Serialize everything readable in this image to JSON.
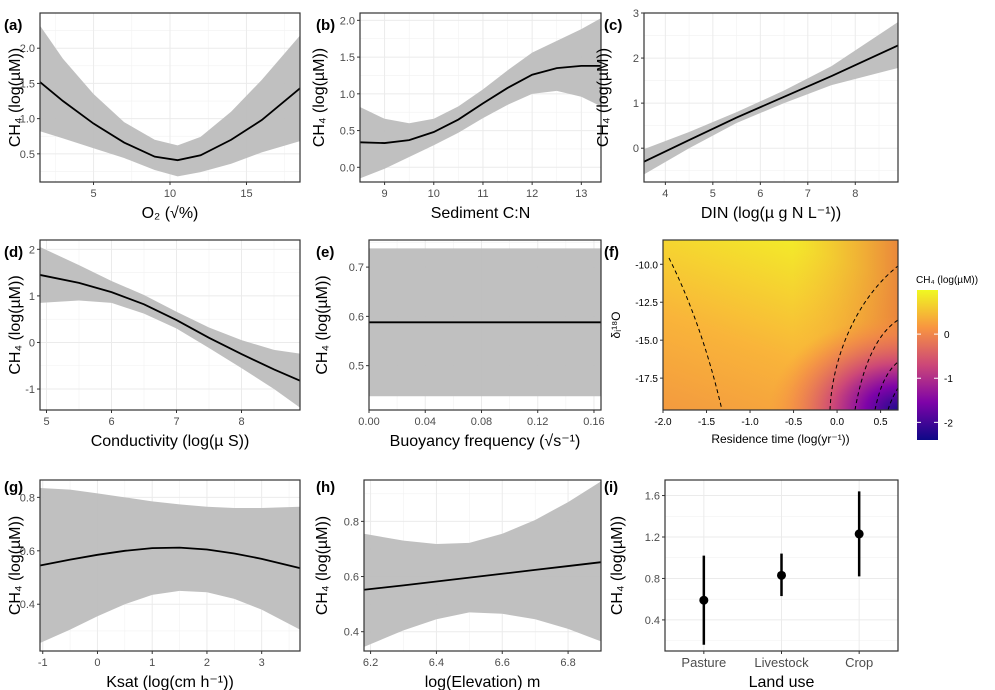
{
  "chart_data": [
    {
      "panel": "(a)",
      "type": "line",
      "xlabel": "O₂ (√%)",
      "ylabel": "CH₄ (log(µM))",
      "xlim": [
        1.5,
        18.5
      ],
      "ylim": [
        0.1,
        2.5
      ],
      "xticks": [
        5,
        10,
        15
      ],
      "yticks": [
        0.5,
        1.0,
        1.5,
        2.0
      ],
      "ytick_labels": [
        "0.5",
        "1.0",
        "1.5",
        "2.0"
      ],
      "x": [
        1.5,
        3,
        5,
        7,
        9,
        10.5,
        12,
        14,
        16,
        18.5
      ],
      "fit": [
        1.52,
        1.25,
        0.93,
        0.66,
        0.46,
        0.41,
        0.48,
        0.7,
        0.98,
        1.43
      ],
      "lower": [
        0.82,
        0.72,
        0.58,
        0.44,
        0.27,
        0.18,
        0.24,
        0.36,
        0.52,
        0.68
      ],
      "upper": [
        2.32,
        1.85,
        1.35,
        0.95,
        0.7,
        0.62,
        0.74,
        1.1,
        1.55,
        2.18
      ]
    },
    {
      "panel": "(b)",
      "type": "line",
      "xlabel": "Sediment C:N",
      "ylabel": "CH₄ (log(µM))",
      "xlim": [
        8.5,
        13.4
      ],
      "ylim": [
        -0.2,
        2.1
      ],
      "xticks": [
        9,
        10,
        11,
        12,
        13
      ],
      "yticks": [
        0.0,
        0.5,
        1.0,
        1.5,
        2.0
      ],
      "ytick_labels": [
        "0.0",
        "0.5",
        "1.0",
        "1.5",
        "2.0"
      ],
      "x": [
        8.5,
        9,
        9.5,
        10,
        10.5,
        11,
        11.5,
        12,
        12.5,
        13,
        13.4
      ],
      "fit": [
        0.34,
        0.33,
        0.37,
        0.48,
        0.65,
        0.87,
        1.08,
        1.26,
        1.35,
        1.38,
        1.38
      ],
      "lower": [
        -0.15,
        -0.02,
        0.14,
        0.3,
        0.47,
        0.67,
        0.85,
        1.0,
        1.04,
        0.96,
        0.83
      ],
      "upper": [
        0.82,
        0.66,
        0.6,
        0.66,
        0.83,
        1.06,
        1.32,
        1.56,
        1.72,
        1.88,
        2.03
      ]
    },
    {
      "panel": "(c)",
      "type": "line",
      "xlabel": "DIN (log(µ g N L⁻¹))",
      "ylabel": "CH₄ (log(µM))",
      "xlim": [
        3.55,
        8.9
      ],
      "ylim": [
        -0.75,
        3.0
      ],
      "xticks": [
        4,
        5,
        6,
        7,
        8
      ],
      "yticks": [
        0,
        1,
        2,
        3
      ],
      "ytick_labels": [
        "0",
        "1",
        "2",
        "3"
      ],
      "x": [
        3.55,
        4.5,
        5.5,
        6.5,
        7.5,
        8.9
      ],
      "fit": [
        -0.3,
        0.18,
        0.68,
        1.14,
        1.6,
        2.28
      ],
      "lower": [
        -0.58,
        0.0,
        0.56,
        1.0,
        1.4,
        1.78
      ],
      "upper": [
        -0.02,
        0.36,
        0.8,
        1.28,
        1.82,
        2.8
      ]
    },
    {
      "panel": "(d)",
      "type": "line",
      "xlabel": "Conductivity (log(µ S))",
      "ylabel": "CH₄ (log(µM))",
      "xlim": [
        4.9,
        8.9
      ],
      "ylim": [
        -1.45,
        2.2
      ],
      "xticks": [
        5,
        6,
        7,
        8
      ],
      "yticks": [
        -1,
        0,
        1,
        2
      ],
      "ytick_labels": [
        "-1",
        "0",
        "1",
        "2"
      ],
      "x": [
        4.9,
        5.5,
        6,
        6.5,
        7,
        7.5,
        8,
        8.5,
        8.9
      ],
      "fit": [
        1.45,
        1.28,
        1.08,
        0.82,
        0.48,
        0.1,
        -0.25,
        -0.58,
        -0.82
      ],
      "lower": [
        0.85,
        0.9,
        0.85,
        0.62,
        0.3,
        -0.12,
        -0.55,
        -1.0,
        -1.4
      ],
      "upper": [
        2.05,
        1.66,
        1.32,
        1.02,
        0.66,
        0.32,
        0.05,
        -0.16,
        -0.24
      ]
    },
    {
      "panel": "(e)",
      "type": "line",
      "xlabel": "Buoyancy frequency (√s⁻¹)",
      "ylabel": "CH₄ (log(µM))",
      "xlim": [
        0.0,
        0.165
      ],
      "ylim": [
        0.41,
        0.755
      ],
      "xticks": [
        0.0,
        0.04,
        0.08,
        0.12,
        0.16
      ],
      "xtick_labels": [
        "0.00",
        "0.04",
        "0.08",
        "0.12",
        "0.16"
      ],
      "yticks": [
        0.5,
        0.6,
        0.7
      ],
      "ytick_labels": [
        "0.5",
        "0.6",
        "0.7"
      ],
      "x": [
        0.0,
        0.165
      ],
      "fit": [
        0.588,
        0.588
      ],
      "lower": [
        0.438,
        0.438
      ],
      "upper": [
        0.738,
        0.738
      ]
    },
    {
      "panel": "(f)",
      "type": "heatmap",
      "xlabel": "Residence time (log(yr⁻¹))",
      "ylabel": "δᵢ¹⁸O",
      "xlim": [
        -2.0,
        0.7
      ],
      "ylim": [
        -19.6,
        -8.4
      ],
      "xticks": [
        -2.0,
        -1.5,
        -1.0,
        -0.5,
        0.0,
        0.5
      ],
      "xtick_labels": [
        "-2.0",
        "-1.5",
        "-1.0",
        "-0.5",
        "0.0",
        "0.5"
      ],
      "yticks": [
        -17.5,
        -15.0,
        -12.5,
        -10.0
      ],
      "ytick_labels": [
        "-17.5",
        "-15.0",
        "-12.5",
        "-10.0"
      ],
      "legend_title": "CH₄ (log(µM))",
      "legend_ticks": [
        0,
        -1,
        -2
      ],
      "legend_tick_labels": [
        "0",
        "-1",
        "-2"
      ],
      "colorbar_range": [
        -2.4,
        1.0
      ],
      "colors": [
        "#0d0887",
        "#7e03a8",
        "#cc4778",
        "#f89540",
        "#f0f921"
      ]
    },
    {
      "panel": "(g)",
      "type": "line",
      "xlabel": "Ksat (log(cm h⁻¹))",
      "ylabel": "CH₄ (log(µM))",
      "xlim": [
        -1.05,
        3.7
      ],
      "ylim": [
        0.225,
        0.865
      ],
      "xticks": [
        -1,
        0,
        1,
        2,
        3
      ],
      "yticks": [
        0.4,
        0.6,
        0.8
      ],
      "ytick_labels": [
        "0.4",
        "0.6",
        "0.8"
      ],
      "x": [
        -1.05,
        -0.5,
        0,
        0.5,
        1,
        1.5,
        2,
        2.5,
        3,
        3.7
      ],
      "fit": [
        0.545,
        0.567,
        0.585,
        0.6,
        0.61,
        0.612,
        0.605,
        0.59,
        0.57,
        0.535
      ],
      "lower": [
        0.255,
        0.305,
        0.355,
        0.4,
        0.435,
        0.45,
        0.445,
        0.42,
        0.38,
        0.305
      ],
      "upper": [
        0.835,
        0.829,
        0.815,
        0.8,
        0.785,
        0.774,
        0.765,
        0.76,
        0.76,
        0.765
      ]
    },
    {
      "panel": "(h)",
      "type": "line",
      "xlabel": "log(Elevation) m",
      "ylabel": "CH₄ (log(µM))",
      "xlim": [
        6.18,
        6.9
      ],
      "ylim": [
        0.33,
        0.95
      ],
      "xticks": [
        6.2,
        6.4,
        6.6,
        6.8
      ],
      "xtick_labels": [
        "6.2",
        "6.4",
        "6.6",
        "6.8"
      ],
      "yticks": [
        0.4,
        0.6,
        0.8
      ],
      "ytick_labels": [
        "0.4",
        "0.6",
        "0.8"
      ],
      "x": [
        6.18,
        6.3,
        6.4,
        6.5,
        6.6,
        6.7,
        6.8,
        6.9
      ],
      "fit": [
        0.552,
        0.568,
        0.582,
        0.596,
        0.61,
        0.624,
        0.638,
        0.652
      ],
      "lower": [
        0.345,
        0.405,
        0.445,
        0.47,
        0.465,
        0.445,
        0.41,
        0.365
      ],
      "upper": [
        0.755,
        0.73,
        0.718,
        0.722,
        0.755,
        0.805,
        0.87,
        0.945
      ]
    },
    {
      "panel": "(i)",
      "type": "scatter",
      "xlabel": "Land use",
      "ylabel": "CH₄ (log(µM))",
      "categories": [
        "Pasture",
        "Livestock",
        "Crop"
      ],
      "ylim": [
        0.1,
        1.75
      ],
      "yticks": [
        0.4,
        0.8,
        1.2,
        1.6
      ],
      "ytick_labels": [
        "0.4",
        "0.8",
        "1.2",
        "1.6"
      ],
      "values": [
        0.59,
        0.83,
        1.23
      ],
      "lower": [
        0.16,
        0.63,
        0.82
      ],
      "upper": [
        1.02,
        1.04,
        1.64
      ]
    }
  ]
}
